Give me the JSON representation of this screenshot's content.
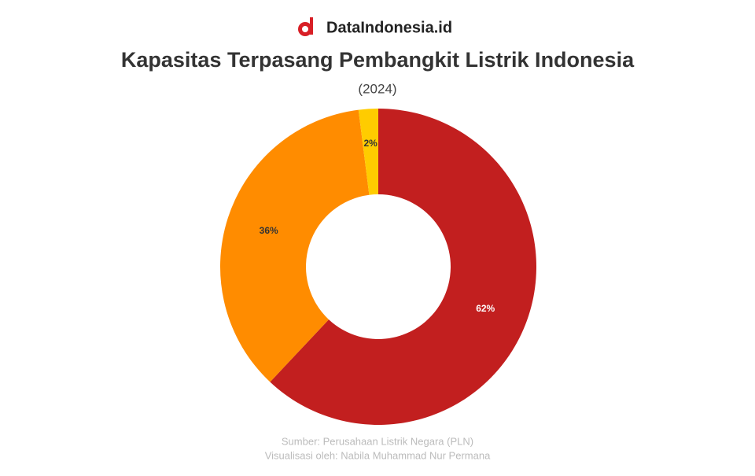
{
  "brand": "DataIndonesia.id",
  "chart_data": {
    "type": "donut",
    "title": "Kapasitas Terpasang Pembangkit Listrik Indonesia",
    "subtitle": "(2024)",
    "values": [
      62,
      36,
      2
    ],
    "value_labels": [
      "62%",
      "36%",
      "2%"
    ],
    "colors": [
      "#c21f1f",
      "#ff8c00",
      "#ffcc00"
    ],
    "label_colors": [
      "#ffffff",
      "#333333",
      "#333333"
    ],
    "source": "Sumber: Perusahaan Listrik Negara (PLN)",
    "credit": "Visualisasi oleh: Nabila Muhammad Nur Permana"
  }
}
